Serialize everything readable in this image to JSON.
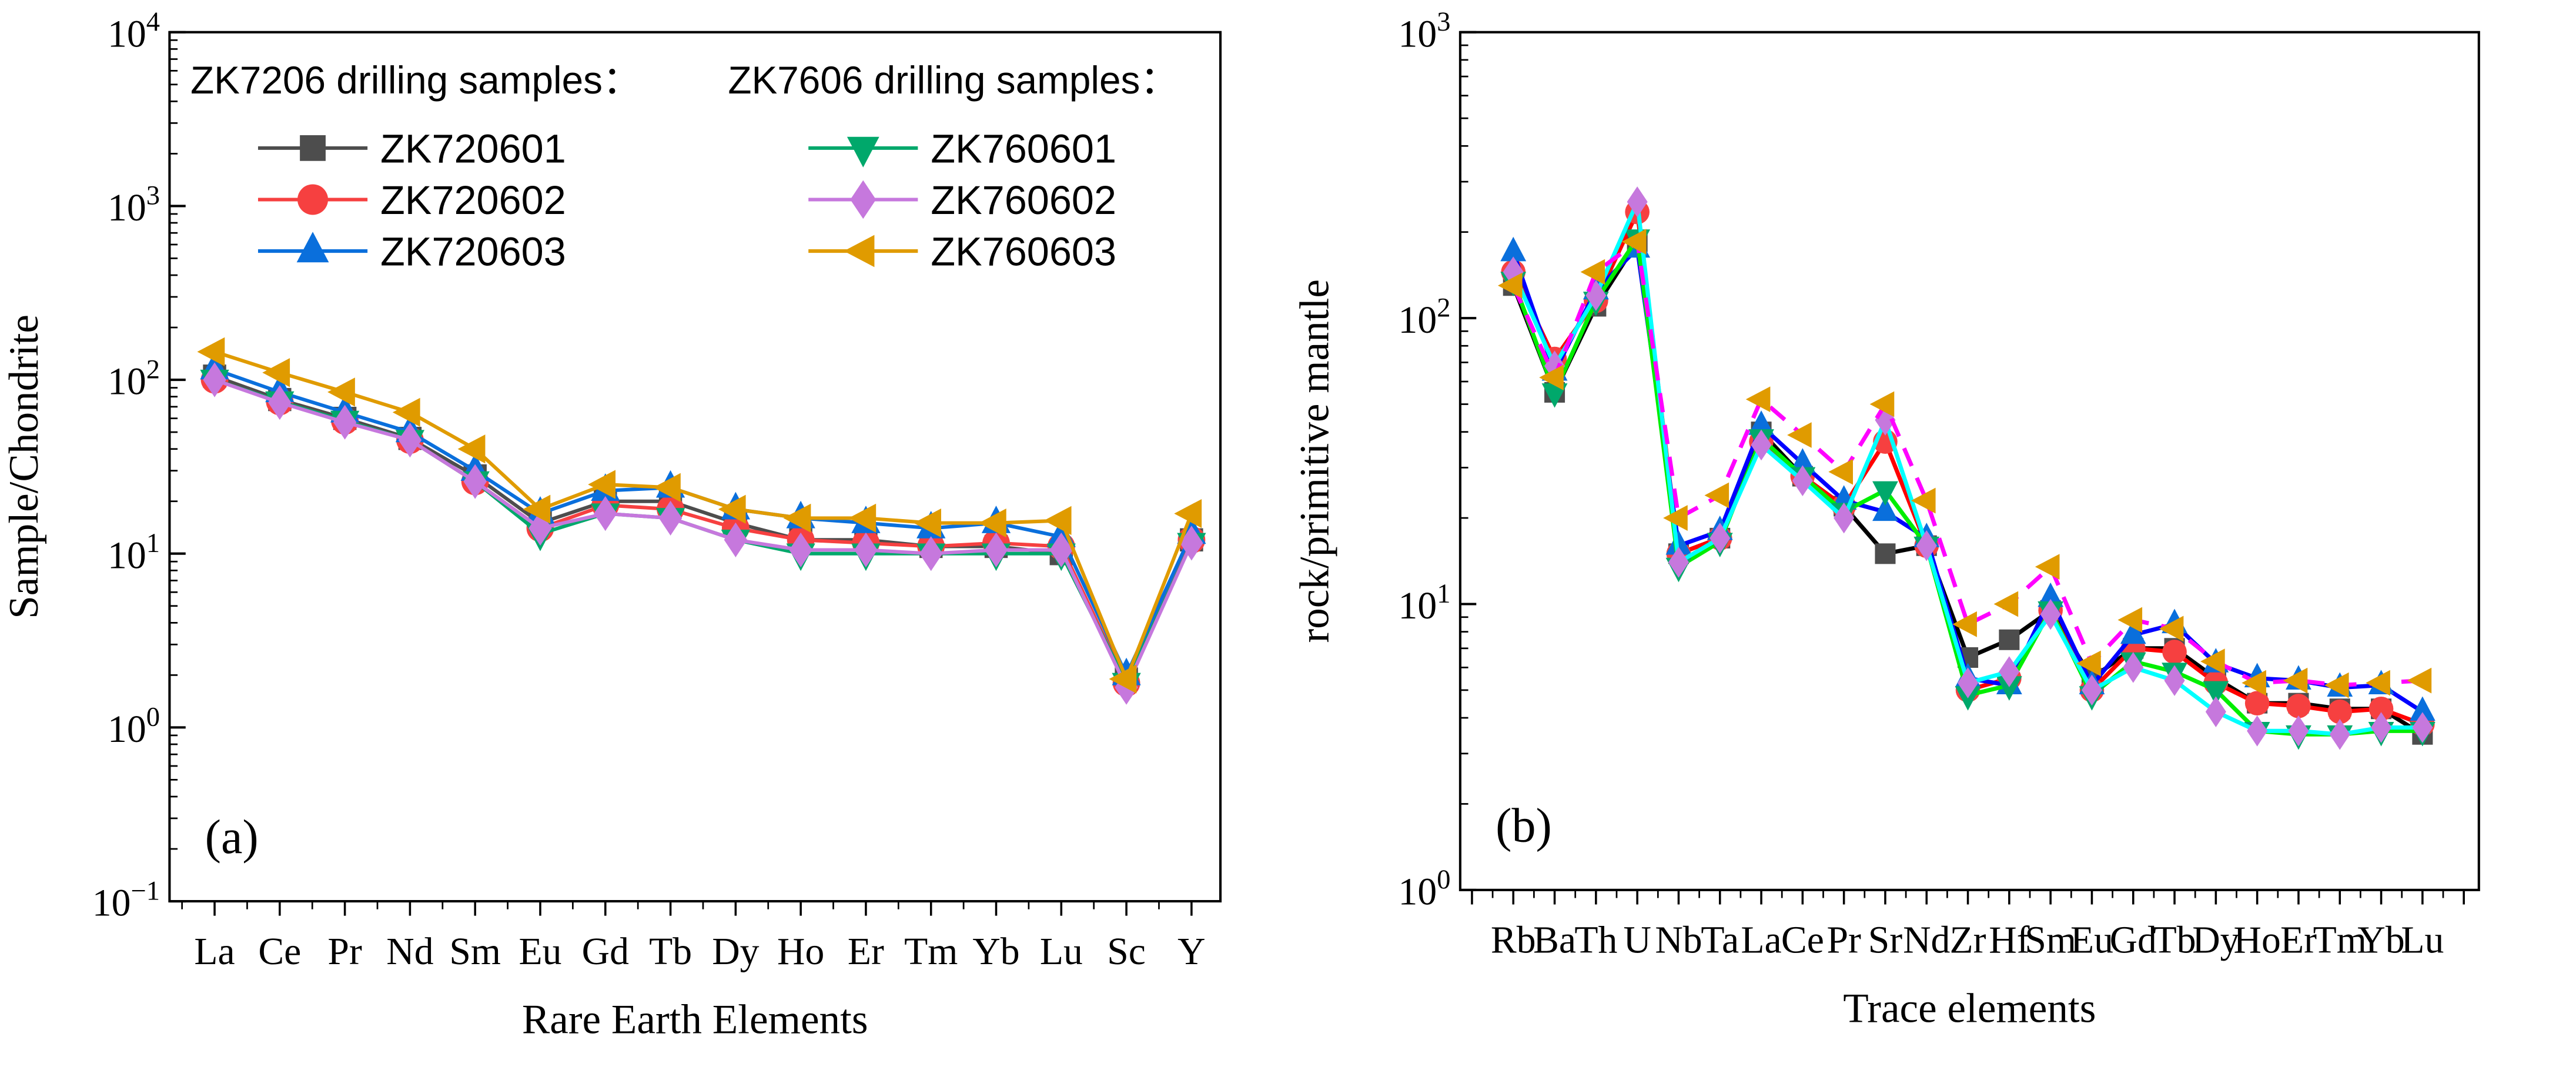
{
  "chart_data": [
    {
      "type": "line",
      "panel_label": "(a)",
      "xlabel": "Rare Earth Elements",
      "ylabel": "Sample/Chondrite",
      "yscale": "log",
      "ylim": [
        0.1,
        10000
      ],
      "ytick_labels": [
        "10^-1",
        "10^0",
        "10^1",
        "10^2",
        "10^3",
        "10^4"
      ],
      "categories": [
        "La",
        "Ce",
        "Pr",
        "Nd",
        "Sm",
        "Eu",
        "Gd",
        "Tb",
        "Dy",
        "Ho",
        "Er",
        "Tm",
        "Yb",
        "Lu",
        "Sc",
        "Y"
      ],
      "legend_headers": [
        "ZK7206 drilling samples：",
        "ZK7606 drilling samples："
      ],
      "legend_placement": "top",
      "series": [
        {
          "name": "ZK720601",
          "marker": "square",
          "color": "#4d4d4d",
          "line": "#4d4d4d",
          "values": [
            105,
            77,
            60,
            46,
            28,
            15,
            20,
            20,
            15,
            12,
            12,
            11,
            11,
            10,
            1.9,
            12
          ]
        },
        {
          "name": "ZK720602",
          "marker": "circle",
          "color": "#f64040",
          "line": "#f64040",
          "values": [
            100,
            75,
            58,
            45,
            26,
            14,
            19,
            18,
            14,
            12,
            11.5,
            11,
            11.5,
            11,
            1.8,
            12
          ]
        },
        {
          "name": "ZK720603",
          "marker": "triangle-up",
          "color": "#0a6fdc",
          "line": "#0a6fdc",
          "values": [
            115,
            85,
            65,
            50,
            30,
            17,
            23,
            24,
            18,
            16,
            15,
            14,
            15,
            12.5,
            2,
            13
          ]
        },
        {
          "name": "ZK760601",
          "marker": "triangle-down",
          "color": "#00a86b",
          "line": "#00a86b",
          "values": [
            100,
            75,
            58,
            45,
            26,
            13,
            17,
            16,
            12,
            10,
            10,
            10,
            10,
            10,
            1.8,
            11.5
          ]
        },
        {
          "name": "ZK760602",
          "marker": "diamond",
          "color": "#c678dd",
          "line": "#c678dd",
          "values": [
            100,
            74,
            57,
            45,
            26,
            14,
            17,
            16,
            12,
            10.5,
            10.5,
            10,
            10.5,
            10.5,
            1.7,
            11.5
          ]
        },
        {
          "name": "ZK760603",
          "marker": "triangle-left",
          "color": "#e09b00",
          "line": "#e09b00",
          "values": [
            145,
            110,
            85,
            65,
            40,
            18,
            25,
            24,
            18,
            16,
            16,
            15,
            15,
            15.5,
            1.9,
            17
          ]
        }
      ]
    },
    {
      "type": "line",
      "panel_label": "(b)",
      "xlabel": "Trace elements",
      "ylabel": "rock/primitive mantle",
      "yscale": "log",
      "ylim": [
        1,
        1000
      ],
      "ytick_labels": [
        "10^0",
        "10^1",
        "10^2",
        "10^3"
      ],
      "categories": [
        "Rb",
        "Ba",
        "Th",
        "U",
        "Nb",
        "Ta",
        "La",
        "Ce",
        "Pr",
        "Sr",
        "Nd",
        "Zr",
        "Hf",
        "Sm",
        "Eu",
        "Gd",
        "Tb",
        "Dy",
        "Ho",
        "Er",
        "Tm",
        "Yb",
        "Lu"
      ],
      "series": [
        {
          "name": "ZK720601",
          "marker": "square",
          "color": "#4d4d4d",
          "line": "#000000",
          "values": [
            130,
            55,
            110,
            185,
            15,
            17,
            40,
            28,
            22,
            15,
            16,
            6.5,
            7.5,
            9.5,
            5.5,
            7,
            7,
            5.5,
            4.5,
            4.5,
            4.3,
            4.3,
            3.5
          ]
        },
        {
          "name": "ZK720602",
          "marker": "circle",
          "color": "#f64040",
          "line": "#ff0000",
          "values": [
            145,
            72,
            115,
            235,
            15,
            17,
            37,
            28,
            22,
            37,
            16,
            5,
            5.5,
            9.5,
            5,
            7,
            6.8,
            5.3,
            4.5,
            4.4,
            4.2,
            4.3,
            3.8
          ]
        },
        {
          "name": "ZK720603",
          "marker": "triangle-up",
          "color": "#0a6fdc",
          "line": "#0000ff",
          "values": [
            170,
            65,
            125,
            175,
            16,
            18,
            42,
            31,
            23,
            21,
            17,
            5.5,
            5.2,
            10.5,
            5.2,
            7.8,
            8.5,
            6.2,
            5.5,
            5.4,
            5.1,
            5.2,
            4.2
          ]
        },
        {
          "name": "ZK760601",
          "marker": "triangle-down",
          "color": "#00a86b",
          "line": "#00ee00",
          "values": [
            135,
            55,
            115,
            190,
            13.5,
            16.5,
            38,
            28,
            21,
            25,
            16,
            4.8,
            5.2,
            9.5,
            4.8,
            6.3,
            5.8,
            5,
            3.6,
            3.5,
            3.5,
            3.6,
            3.6
          ]
        },
        {
          "name": "ZK760602",
          "marker": "diamond",
          "color": "#c678dd",
          "line": "#00ffff",
          "values": [
            145,
            68,
            120,
            255,
            14,
            17,
            36,
            27,
            20,
            44,
            16,
            5.3,
            5.8,
            9.2,
            5,
            6,
            5.4,
            4.2,
            3.6,
            3.6,
            3.5,
            3.7,
            3.7
          ]
        },
        {
          "name": "ZK760603",
          "marker": "triangle-left",
          "color": "#e09b00",
          "line": "#ff00ff",
          "values": [
            130,
            62,
            145,
            185,
            20,
            24,
            52,
            39,
            29,
            50,
            23,
            8.5,
            10,
            13.5,
            6.2,
            8.8,
            8.2,
            6.3,
            5.3,
            5.4,
            5.2,
            5.3,
            5.4
          ]
        }
      ]
    }
  ]
}
